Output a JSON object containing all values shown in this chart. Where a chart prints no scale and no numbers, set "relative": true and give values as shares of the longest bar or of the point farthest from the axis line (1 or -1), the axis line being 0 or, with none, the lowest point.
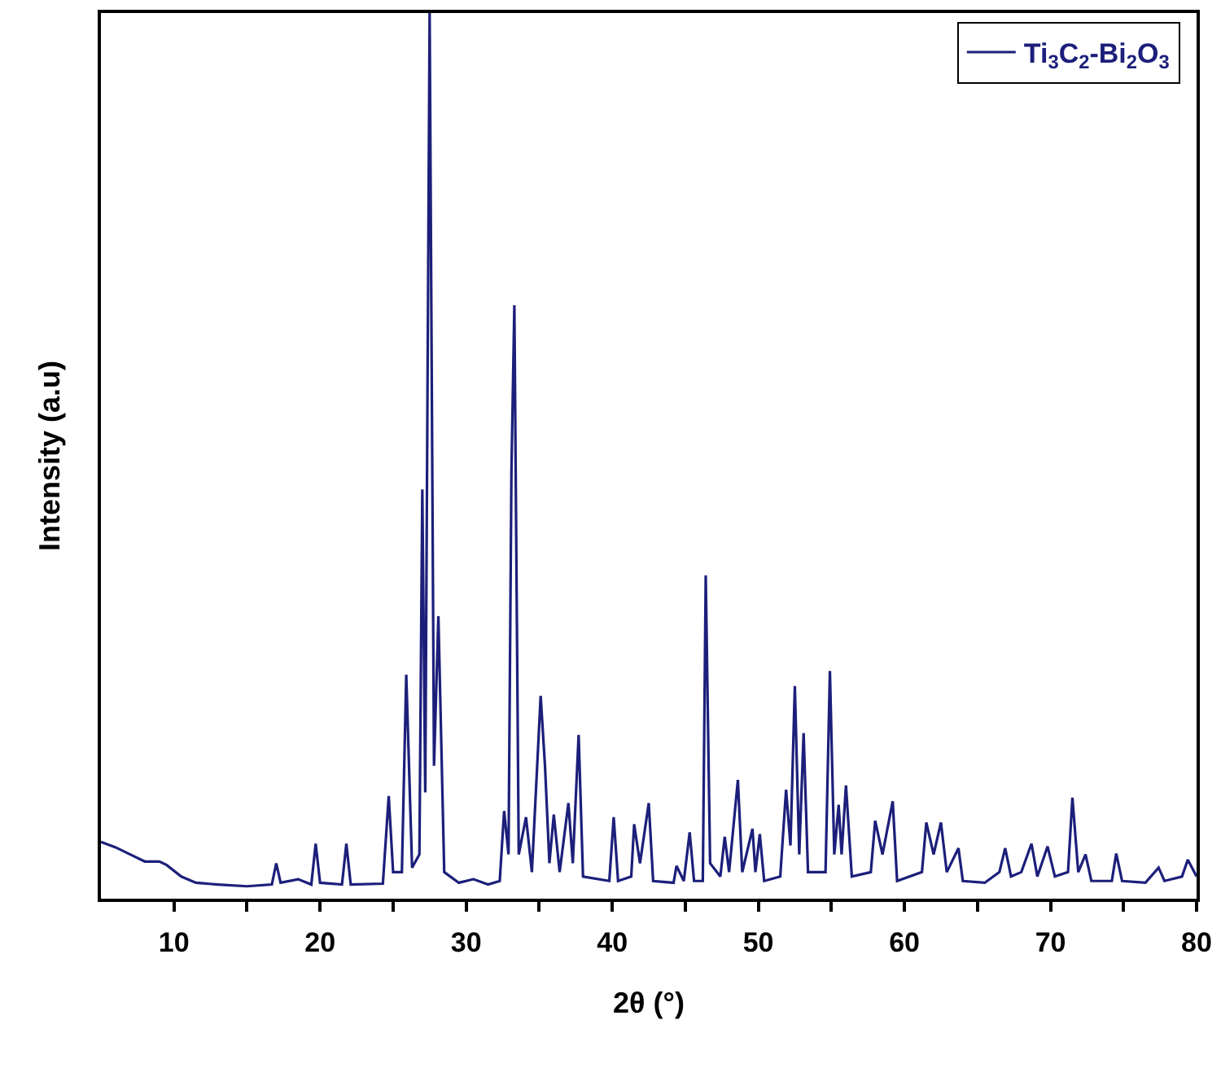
{
  "chart_data": {
    "type": "line",
    "relative": true,
    "xlabel": "2θ (°)",
    "ylabel": "Intensity (a.u)",
    "xlim": [
      5,
      80
    ],
    "xticks": [
      10,
      {
        "value": 15,
        "label": null
      },
      20,
      {
        "value": 25,
        "label": null
      },
      30,
      {
        "value": 35,
        "label": null
      },
      40,
      {
        "value": 45,
        "label": null
      },
      50,
      {
        "value": 55,
        "label": null
      },
      60,
      {
        "value": 65,
        "label": null
      },
      70,
      {
        "value": 75,
        "label": null
      },
      80
    ],
    "legend": "top right",
    "marker": "none",
    "line_style": "solid",
    "series": [
      {
        "name": "Ti$_{3}$C$_{2}$-Bi$_{2}$O$_{3}$",
        "color": "#1c1f7a",
        "x": [
          5,
          6,
          7,
          8,
          9,
          9.5,
          10.5,
          11.5,
          13,
          15,
          16.7,
          17,
          17.3,
          18.5,
          19.4,
          19.7,
          20,
          21.5,
          21.8,
          22.1,
          24.3,
          24.7,
          25.0,
          25.6,
          25.9,
          26.3,
          26.8,
          27.0,
          27.2,
          27.5,
          27.8,
          28.1,
          28.5,
          29.5,
          30.5,
          31.5,
          32.3,
          32.6,
          32.9,
          33.1,
          33.3,
          33.6,
          34.1,
          34.5,
          35.1,
          35.4,
          35.7,
          36.0,
          36.4,
          37.0,
          37.3,
          37.7,
          38.0,
          39.8,
          40.1,
          40.4,
          41.3,
          41.5,
          41.9,
          42.5,
          42.8,
          44.2,
          44.4,
          44.9,
          45.3,
          45.6,
          46.2,
          46.4,
          46.7,
          47.4,
          47.7,
          48.0,
          48.6,
          48.9,
          49.6,
          49.8,
          50.1,
          50.4,
          51.5,
          51.9,
          52.2,
          52.5,
          52.8,
          53.1,
          53.4,
          54.6,
          54.9,
          55.2,
          55.5,
          55.7,
          56.0,
          56.4,
          57.7,
          58.0,
          58.5,
          59.2,
          59.5,
          61.2,
          61.5,
          62.0,
          62.5,
          62.9,
          63.7,
          64.0,
          65.5,
          66.5,
          66.9,
          67.3,
          68.0,
          68.7,
          69.1,
          69.8,
          70.3,
          71.2,
          71.5,
          71.9,
          72.4,
          72.8,
          74.2,
          74.5,
          74.9,
          76.5,
          77.4,
          77.8,
          79.0,
          79.4,
          80
        ],
        "values": [
          0.064,
          0.058,
          0.05,
          0.042,
          0.042,
          0.038,
          0.025,
          0.018,
          0.016,
          0.014,
          0.016,
          0.04,
          0.018,
          0.022,
          0.016,
          0.062,
          0.018,
          0.016,
          0.062,
          0.016,
          0.017,
          0.116,
          0.03,
          0.03,
          0.253,
          0.035,
          0.05,
          0.462,
          0.12,
          1.0,
          0.15,
          0.319,
          0.03,
          0.018,
          0.022,
          0.016,
          0.02,
          0.099,
          0.05,
          0.482,
          0.67,
          0.05,
          0.092,
          0.03,
          0.229,
          0.149,
          0.04,
          0.095,
          0.03,
          0.108,
          0.04,
          0.185,
          0.025,
          0.02,
          0.092,
          0.02,
          0.025,
          0.084,
          0.04,
          0.108,
          0.02,
          0.018,
          0.037,
          0.02,
          0.075,
          0.02,
          0.02,
          0.365,
          0.04,
          0.025,
          0.07,
          0.03,
          0.134,
          0.03,
          0.079,
          0.03,
          0.073,
          0.02,
          0.025,
          0.123,
          0.06,
          0.24,
          0.05,
          0.187,
          0.03,
          0.03,
          0.257,
          0.05,
          0.106,
          0.05,
          0.128,
          0.025,
          0.03,
          0.088,
          0.05,
          0.11,
          0.02,
          0.03,
          0.086,
          0.05,
          0.086,
          0.03,
          0.057,
          0.02,
          0.018,
          0.03,
          0.057,
          0.025,
          0.03,
          0.062,
          0.025,
          0.059,
          0.025,
          0.03,
          0.114,
          0.03,
          0.05,
          0.02,
          0.02,
          0.051,
          0.02,
          0.018,
          0.035,
          0.02,
          0.025,
          0.044,
          0.025
        ]
      }
    ]
  }
}
